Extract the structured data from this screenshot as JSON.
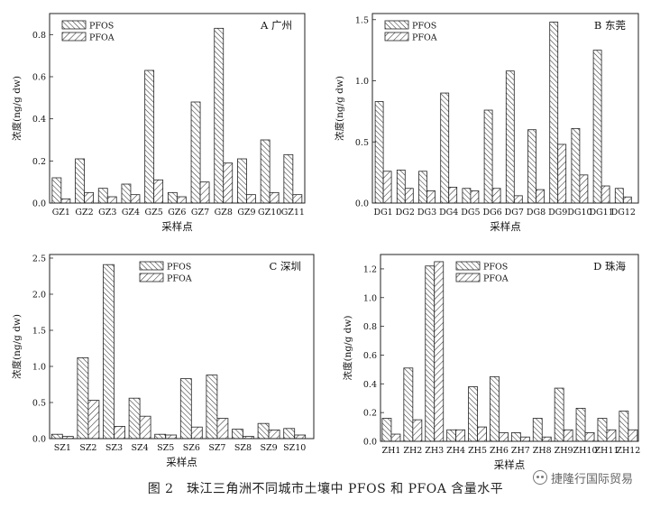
{
  "caption": "图 2　珠江三角洲不同城市土壤中 PFOS 和 PFOA 含量水平",
  "watermark": "捷隆行国际贸易",
  "colors": {
    "axis": "#222222",
    "hatch": "#333333",
    "fill": "#ffffff"
  },
  "chart_data": [
    {
      "type": "bar",
      "panel": "A",
      "title": "A 广州",
      "xlabel": "采样点",
      "ylabel": "浓度(ng/g dw)",
      "ylim": [
        0,
        0.9
      ],
      "yticks": [
        0.0,
        0.2,
        0.4,
        0.6,
        0.8
      ],
      "ytick_labels": [
        "0.0",
        "0.2",
        "0.4",
        "0.6",
        "0.8"
      ],
      "legend_position": "top-left",
      "categories": [
        "GZ1",
        "GZ2",
        "GZ3",
        "GZ4",
        "GZ5",
        "GZ6",
        "GZ7",
        "GZ8",
        "GZ9",
        "GZ10",
        "GZ11"
      ],
      "series": [
        {
          "name": "PFOS",
          "values": [
            0.12,
            0.21,
            0.07,
            0.09,
            0.63,
            0.05,
            0.48,
            0.83,
            0.21,
            0.3,
            0.23
          ]
        },
        {
          "name": "PFOA",
          "values": [
            0.02,
            0.05,
            0.03,
            0.04,
            0.11,
            0.03,
            0.1,
            0.19,
            0.04,
            0.05,
            0.04
          ]
        }
      ]
    },
    {
      "type": "bar",
      "panel": "B",
      "title": "B 东莞",
      "xlabel": "采样点",
      "ylabel": "浓度(ng/g dw)",
      "ylim": [
        0,
        1.55
      ],
      "yticks": [
        0.0,
        0.5,
        1.0,
        1.5
      ],
      "ytick_labels": [
        "0.0",
        "0.5",
        "1.0",
        "1.5"
      ],
      "legend_position": "top-left",
      "categories": [
        "DG1",
        "DG2",
        "DG3",
        "DG4",
        "DG5",
        "DG6",
        "DG7",
        "DG8",
        "DG9",
        "DG10",
        "DG11",
        "DG12"
      ],
      "series": [
        {
          "name": "PFOS",
          "values": [
            0.83,
            0.27,
            0.26,
            0.9,
            0.12,
            0.76,
            1.08,
            0.6,
            1.48,
            0.61,
            1.25,
            0.12
          ]
        },
        {
          "name": "PFOA",
          "values": [
            0.26,
            0.12,
            0.1,
            0.13,
            0.1,
            0.12,
            0.06,
            0.11,
            0.48,
            0.23,
            0.14,
            0.05
          ]
        }
      ]
    },
    {
      "type": "bar",
      "panel": "C",
      "title": "C 深圳",
      "xlabel": "采样点",
      "ylabel": "浓度(ng/g dw)",
      "ylim": [
        0,
        2.55
      ],
      "yticks": [
        0.0,
        0.5,
        1.0,
        1.5,
        2.0,
        2.5
      ],
      "ytick_labels": [
        "0.0",
        "0.5",
        "1.0",
        "1.5",
        "2.0",
        "2.5"
      ],
      "legend_position": "top-center",
      "categories": [
        "SZ1",
        "SZ2",
        "SZ3",
        "SZ4",
        "SZ5",
        "SZ6",
        "SZ7",
        "SZ8",
        "SZ9",
        "SZ10"
      ],
      "series": [
        {
          "name": "PFOS",
          "values": [
            0.06,
            1.12,
            2.41,
            0.56,
            0.06,
            0.83,
            0.88,
            0.13,
            0.21,
            0.14
          ]
        },
        {
          "name": "PFOA",
          "values": [
            0.03,
            0.53,
            0.17,
            0.31,
            0.05,
            0.16,
            0.28,
            0.03,
            0.12,
            0.05
          ]
        }
      ]
    },
    {
      "type": "bar",
      "panel": "D",
      "title": "D 珠海",
      "xlabel": "采样点",
      "ylabel": "浓度(ng/g dw)",
      "ylim": [
        0,
        1.3
      ],
      "yticks": [
        0.0,
        0.2,
        0.4,
        0.6,
        0.8,
        1.0,
        1.2
      ],
      "ytick_labels": [
        "0.0",
        "0.2",
        "0.4",
        "0.6",
        "0.8",
        "1.0",
        "1.2"
      ],
      "legend_position": "top-left",
      "categories": [
        "ZH1",
        "ZH2",
        "ZH3",
        "ZH4",
        "ZH5",
        "ZH6",
        "ZH7",
        "ZH8",
        "ZH9",
        "ZH10",
        "ZH11",
        "ZH12"
      ],
      "series": [
        {
          "name": "PFOS",
          "values": [
            0.16,
            0.51,
            1.22,
            0.08,
            0.38,
            0.45,
            0.06,
            0.16,
            0.37,
            0.23,
            0.16,
            0.21
          ]
        },
        {
          "name": "PFOA",
          "values": [
            0.05,
            0.15,
            1.25,
            0.08,
            0.1,
            0.06,
            0.03,
            0.03,
            0.08,
            0.06,
            0.08,
            0.08
          ]
        }
      ]
    }
  ]
}
